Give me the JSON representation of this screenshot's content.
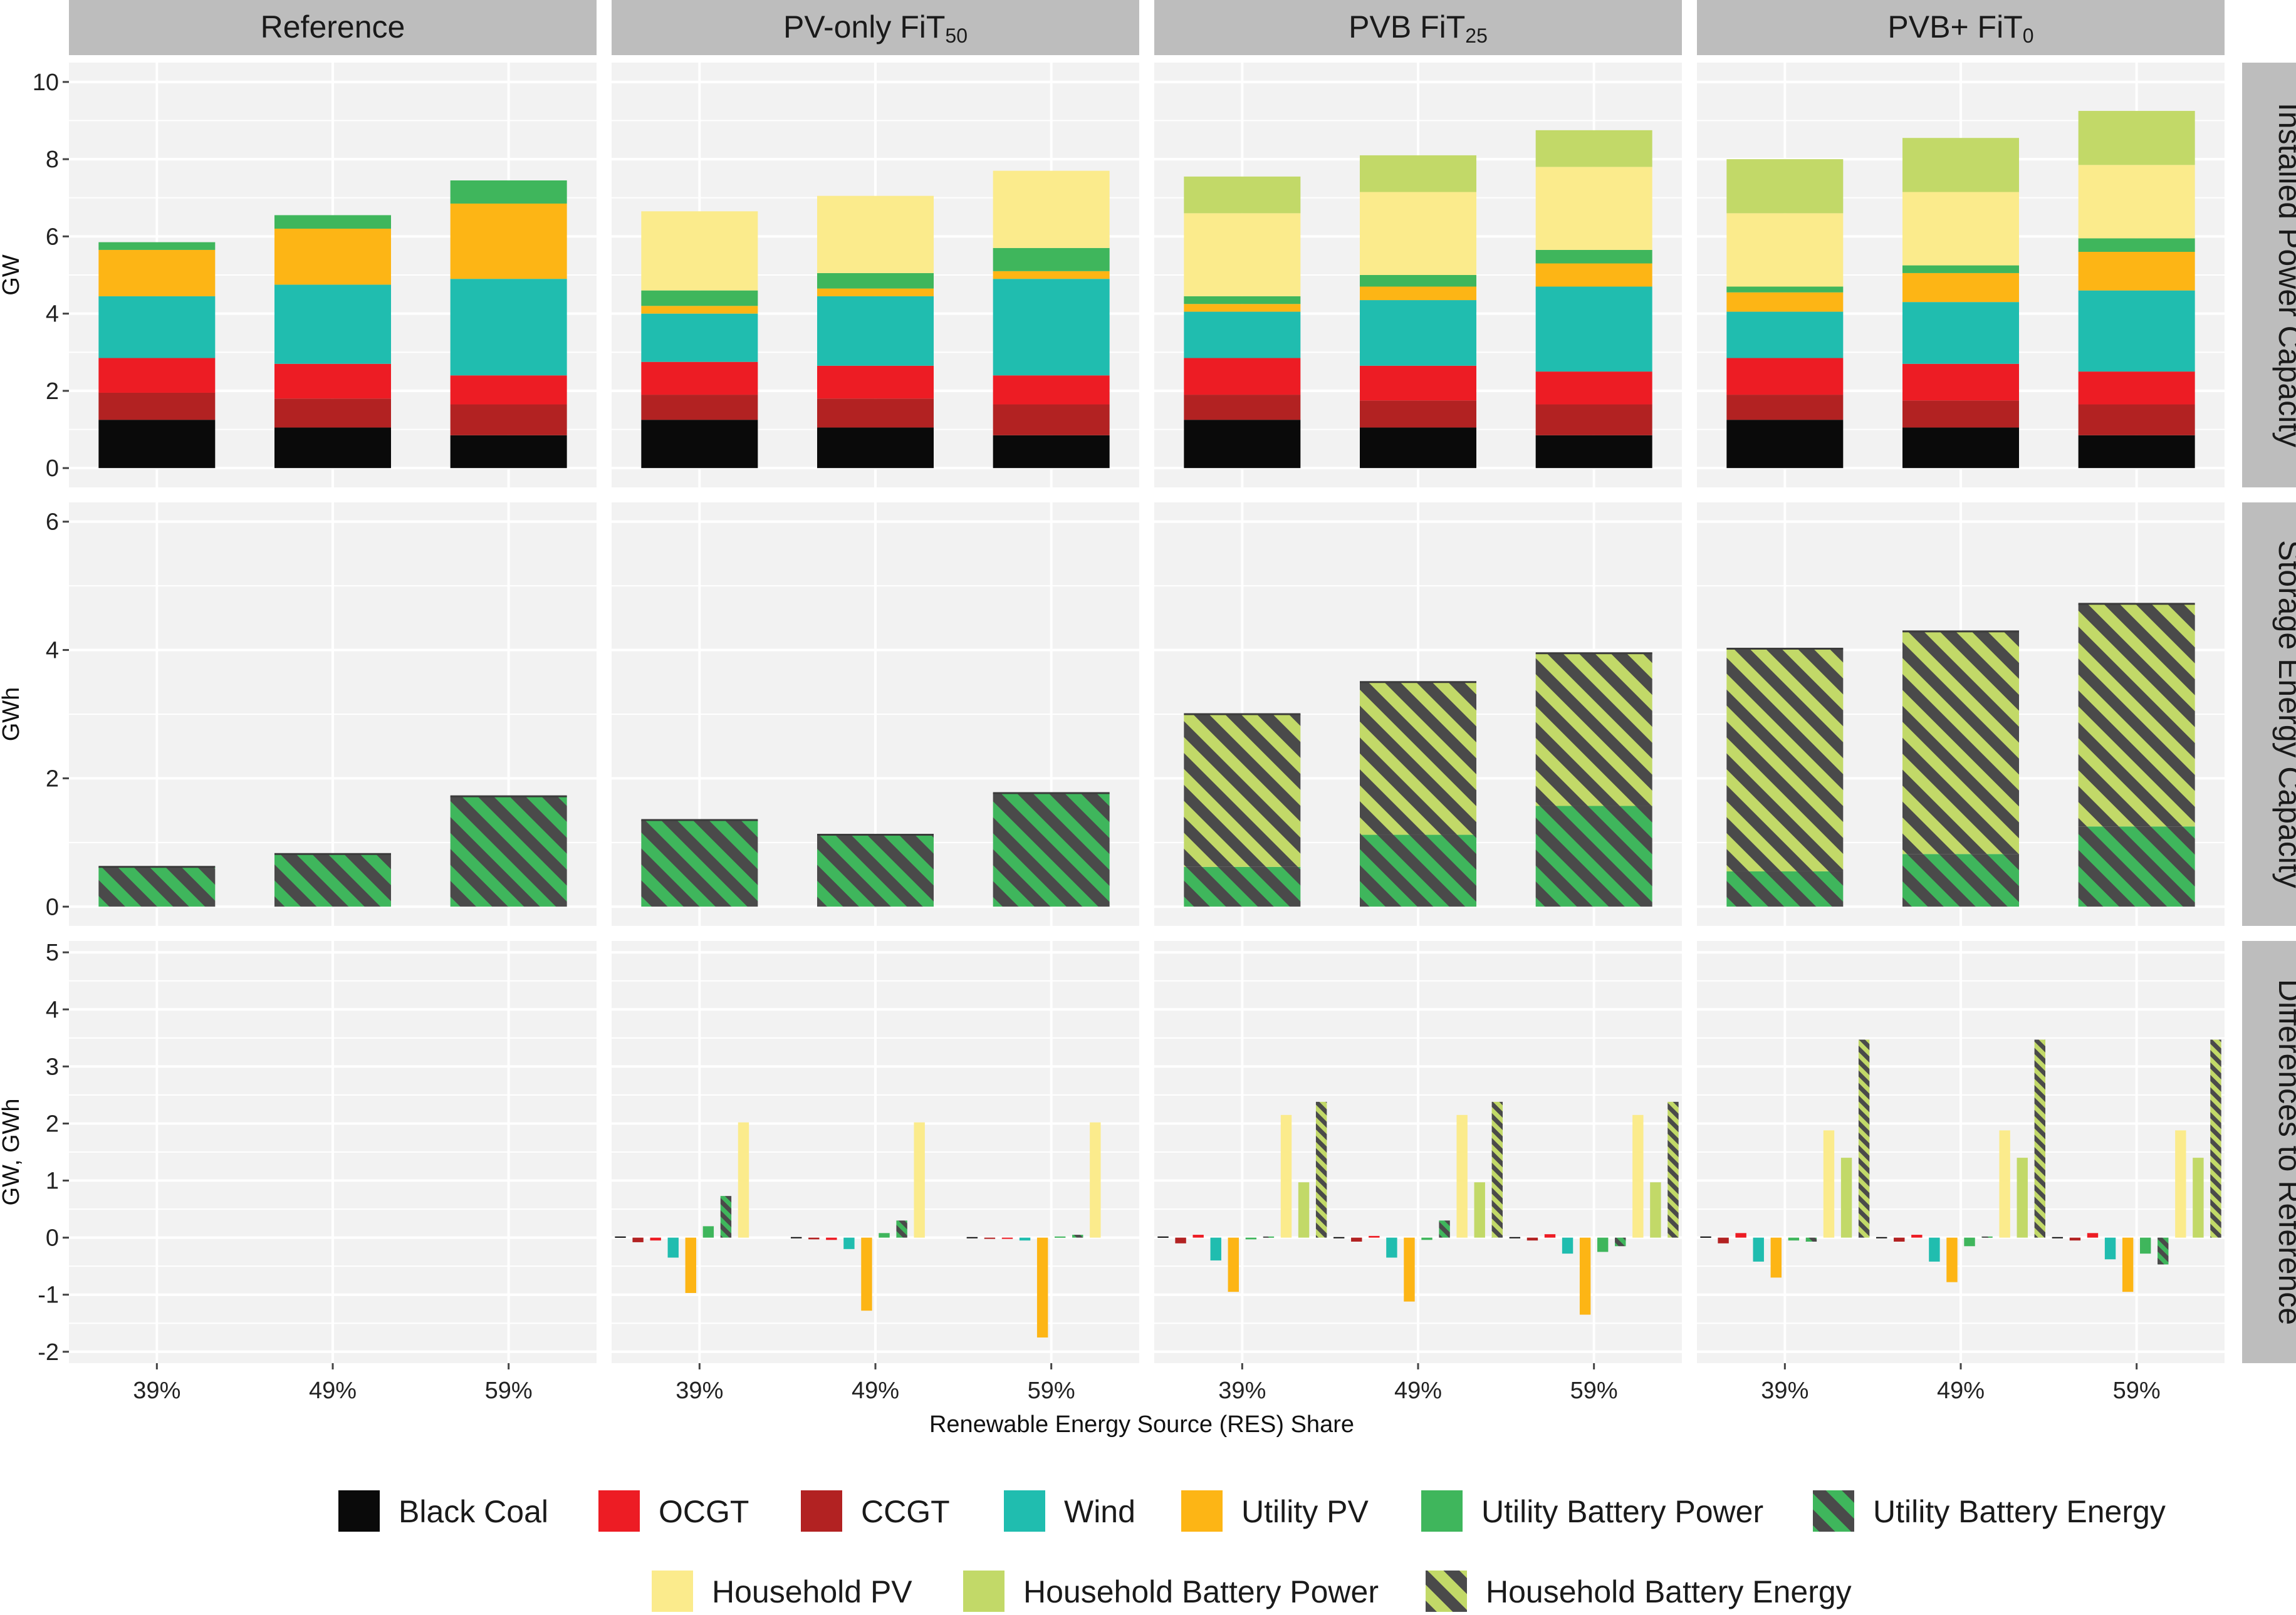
{
  "chart_data": {
    "type": "bar",
    "layout": "faceted stacked bar grid (4 scenario columns x 3 metric rows)",
    "xlabel": "Renewable Energy Source (RES) Share",
    "categories": [
      "39%",
      "49%",
      "59%"
    ],
    "scenarios": [
      {
        "main": "Reference",
        "sub": ""
      },
      {
        "main": "PV-only FiT",
        "sub": "50"
      },
      {
        "main": "PVB FiT",
        "sub": "25"
      },
      {
        "main": "PVB+ FiT",
        "sub": "0"
      }
    ],
    "technologies": [
      {
        "key": "black_coal",
        "label": "Black Coal",
        "color": "#0a0a0a"
      },
      {
        "key": "ocgt",
        "label": "OCGT",
        "color": "#ed1c24"
      },
      {
        "key": "ccgt",
        "label": "CCGT",
        "color": "#b22222"
      },
      {
        "key": "wind",
        "label": "Wind",
        "color": "#20bdaf"
      },
      {
        "key": "utility_pv",
        "label": "Utility PV",
        "color": "#fdb515"
      },
      {
        "key": "utility_battery_power",
        "label": "Utility Battery Power",
        "color": "#3fb65c"
      },
      {
        "key": "utility_battery_energy",
        "label": "Utility Battery Energy",
        "color": "#3fb65c",
        "hatched": true
      },
      {
        "key": "household_pv",
        "label": "Household PV",
        "color": "#fbeb8c"
      },
      {
        "key": "household_battery_power",
        "label": "Household Battery Power",
        "color": "#c2d968"
      },
      {
        "key": "household_battery_energy",
        "label": "Household Battery Energy",
        "color": "#c2d968",
        "hatched": true
      }
    ],
    "panels": [
      {
        "key": "installed",
        "label": "Installed Power Capacity",
        "ylabel": "GW",
        "ylim": [
          -0.5,
          10.5
        ],
        "ticks": [
          0,
          2,
          4,
          6,
          8,
          10
        ],
        "stack_order": [
          "black_coal",
          "ccgt",
          "ocgt",
          "wind",
          "utility_pv",
          "utility_battery_power",
          "household_pv",
          "household_battery_power"
        ],
        "data": [
          [
            {
              "black_coal": 1.25,
              "ccgt": 0.7,
              "ocgt": 0.9,
              "wind": 1.6,
              "utility_pv": 1.2,
              "utility_battery_power": 0.2
            },
            {
              "black_coal": 1.05,
              "ccgt": 0.75,
              "ocgt": 0.9,
              "wind": 2.05,
              "utility_pv": 1.45,
              "utility_battery_power": 0.35
            },
            {
              "black_coal": 0.85,
              "ccgt": 0.8,
              "ocgt": 0.75,
              "wind": 2.5,
              "utility_pv": 1.95,
              "utility_battery_power": 0.6
            }
          ],
          [
            {
              "black_coal": 1.25,
              "ccgt": 0.65,
              "ocgt": 0.85,
              "wind": 1.25,
              "utility_pv": 0.2,
              "utility_battery_power": 0.4,
              "household_pv": 2.05
            },
            {
              "black_coal": 1.05,
              "ccgt": 0.75,
              "ocgt": 0.85,
              "wind": 1.8,
              "utility_pv": 0.2,
              "utility_battery_power": 0.4,
              "household_pv": 2.0
            },
            {
              "black_coal": 0.85,
              "ccgt": 0.8,
              "ocgt": 0.75,
              "wind": 2.5,
              "utility_pv": 0.2,
              "utility_battery_power": 0.6,
              "household_pv": 2.0
            }
          ],
          [
            {
              "black_coal": 1.25,
              "ccgt": 0.65,
              "ocgt": 0.95,
              "wind": 1.2,
              "utility_pv": 0.2,
              "utility_battery_power": 0.2,
              "household_pv": 2.15,
              "household_battery_power": 0.95
            },
            {
              "black_coal": 1.05,
              "ccgt": 0.7,
              "ocgt": 0.9,
              "wind": 1.7,
              "utility_pv": 0.35,
              "utility_battery_power": 0.3,
              "household_pv": 2.15,
              "household_battery_power": 0.95
            },
            {
              "black_coal": 0.85,
              "ccgt": 0.8,
              "ocgt": 0.85,
              "wind": 2.2,
              "utility_pv": 0.6,
              "utility_battery_power": 0.35,
              "household_pv": 2.15,
              "household_battery_power": 0.95
            }
          ],
          [
            {
              "black_coal": 1.25,
              "ccgt": 0.65,
              "ocgt": 0.95,
              "wind": 1.2,
              "utility_pv": 0.5,
              "utility_battery_power": 0.15,
              "household_pv": 1.9,
              "household_battery_power": 1.4
            },
            {
              "black_coal": 1.05,
              "ccgt": 0.7,
              "ocgt": 0.95,
              "wind": 1.6,
              "utility_pv": 0.75,
              "utility_battery_power": 0.2,
              "household_pv": 1.9,
              "household_battery_power": 1.4
            },
            {
              "black_coal": 0.85,
              "ccgt": 0.8,
              "ocgt": 0.85,
              "wind": 2.1,
              "utility_pv": 1.0,
              "utility_battery_power": 0.35,
              "household_pv": 1.9,
              "household_battery_power": 1.4
            }
          ]
        ]
      },
      {
        "key": "storage",
        "label": "Storage Energy Capacity",
        "ylabel": "GWh",
        "ylim": [
          -0.3,
          6.3
        ],
        "ticks": [
          0,
          2,
          4,
          6
        ],
        "stack_order": [
          "utility_battery_energy",
          "household_battery_energy"
        ],
        "data": [
          [
            {
              "utility_battery_energy": 0.62
            },
            {
              "utility_battery_energy": 0.82
            },
            {
              "utility_battery_energy": 1.72
            }
          ],
          [
            {
              "utility_battery_energy": 1.35
            },
            {
              "utility_battery_energy": 1.12
            },
            {
              "utility_battery_energy": 1.77
            }
          ],
          [
            {
              "utility_battery_energy": 0.62,
              "household_battery_energy": 2.38
            },
            {
              "utility_battery_energy": 1.12,
              "household_battery_energy": 2.38
            },
            {
              "utility_battery_energy": 1.57,
              "household_battery_energy": 2.38
            }
          ],
          [
            {
              "utility_battery_energy": 0.55,
              "household_battery_energy": 3.47
            },
            {
              "utility_battery_energy": 0.82,
              "household_battery_energy": 3.47
            },
            {
              "utility_battery_energy": 1.25,
              "household_battery_energy": 3.47
            }
          ]
        ]
      },
      {
        "key": "difference",
        "label": "Differences to Reference",
        "ylabel": "GW, GWh",
        "ylim": [
          -2.2,
          5.2
        ],
        "ticks": [
          -2,
          -1,
          0,
          1,
          2,
          3,
          4,
          5
        ],
        "group_order": [
          "black_coal",
          "ccgt",
          "ocgt",
          "wind",
          "utility_pv",
          "utility_battery_power",
          "utility_battery_energy",
          "household_pv",
          "household_battery_power",
          "household_battery_energy"
        ],
        "data": [
          [
            {
              "black_coal": 0,
              "ccgt": 0,
              "ocgt": 0,
              "wind": 0,
              "utility_pv": 0,
              "utility_battery_power": 0,
              "utility_battery_energy": 0,
              "household_pv": 0,
              "household_battery_power": 0,
              "household_battery_energy": 0
            },
            {
              "black_coal": 0,
              "ccgt": 0,
              "ocgt": 0,
              "wind": 0,
              "utility_pv": 0,
              "utility_battery_power": 0,
              "utility_battery_energy": 0,
              "household_pv": 0,
              "household_battery_power": 0,
              "household_battery_energy": 0
            },
            {
              "black_coal": 0,
              "ccgt": 0,
              "ocgt": 0,
              "wind": 0,
              "utility_pv": 0,
              "utility_battery_power": 0,
              "utility_battery_energy": 0,
              "household_pv": 0,
              "household_battery_power": 0,
              "household_battery_energy": 0
            }
          ],
          [
            {
              "black_coal": 0.02,
              "ccgt": -0.08,
              "ocgt": -0.05,
              "wind": -0.35,
              "utility_pv": -0.97,
              "utility_battery_power": 0.2,
              "utility_battery_energy": 0.73,
              "household_pv": 2.02,
              "household_battery_power": 0,
              "household_battery_energy": 0
            },
            {
              "black_coal": 0.01,
              "ccgt": -0.03,
              "ocgt": -0.04,
              "wind": -0.2,
              "utility_pv": -1.28,
              "utility_battery_power": 0.08,
              "utility_battery_energy": 0.3,
              "household_pv": 2.02,
              "household_battery_power": 0,
              "household_battery_energy": 0
            },
            {
              "black_coal": 0.01,
              "ccgt": -0.02,
              "ocgt": -0.02,
              "wind": -0.05,
              "utility_pv": -1.75,
              "utility_battery_power": 0.02,
              "utility_battery_energy": 0.05,
              "household_pv": 2.02,
              "household_battery_power": 0,
              "household_battery_energy": 0
            }
          ],
          [
            {
              "black_coal": 0.02,
              "ccgt": -0.1,
              "ocgt": 0.05,
              "wind": -0.4,
              "utility_pv": -0.95,
              "utility_battery_power": -0.03,
              "utility_battery_energy": 0.02,
              "household_pv": 2.15,
              "household_battery_power": 0.97,
              "household_battery_energy": 2.38
            },
            {
              "black_coal": 0.01,
              "ccgt": -0.07,
              "ocgt": 0.03,
              "wind": -0.35,
              "utility_pv": -1.12,
              "utility_battery_power": -0.04,
              "utility_battery_energy": 0.3,
              "household_pv": 2.15,
              "household_battery_power": 0.97,
              "household_battery_energy": 2.38
            },
            {
              "black_coal": 0.01,
              "ccgt": -0.05,
              "ocgt": 0.06,
              "wind": -0.28,
              "utility_pv": -1.35,
              "utility_battery_power": -0.25,
              "utility_battery_energy": -0.15,
              "household_pv": 2.15,
              "household_battery_power": 0.97,
              "household_battery_energy": 2.38
            }
          ],
          [
            {
              "black_coal": 0.02,
              "ccgt": -0.1,
              "ocgt": 0.08,
              "wind": -0.42,
              "utility_pv": -0.7,
              "utility_battery_power": -0.05,
              "utility_battery_energy": -0.07,
              "household_pv": 1.88,
              "household_battery_power": 1.4,
              "household_battery_energy": 3.47
            },
            {
              "black_coal": 0.01,
              "ccgt": -0.07,
              "ocgt": 0.05,
              "wind": -0.42,
              "utility_pv": -0.78,
              "utility_battery_power": -0.15,
              "utility_battery_energy": 0.02,
              "household_pv": 1.88,
              "household_battery_power": 1.4,
              "household_battery_energy": 3.47
            },
            {
              "black_coal": 0.01,
              "ccgt": -0.05,
              "ocgt": 0.08,
              "wind": -0.38,
              "utility_pv": -0.95,
              "utility_battery_power": -0.28,
              "utility_battery_energy": -0.47,
              "household_pv": 1.88,
              "household_battery_power": 1.4,
              "household_battery_energy": 3.47
            }
          ]
        ]
      }
    ],
    "legend_position": "bottom",
    "grid": true
  }
}
